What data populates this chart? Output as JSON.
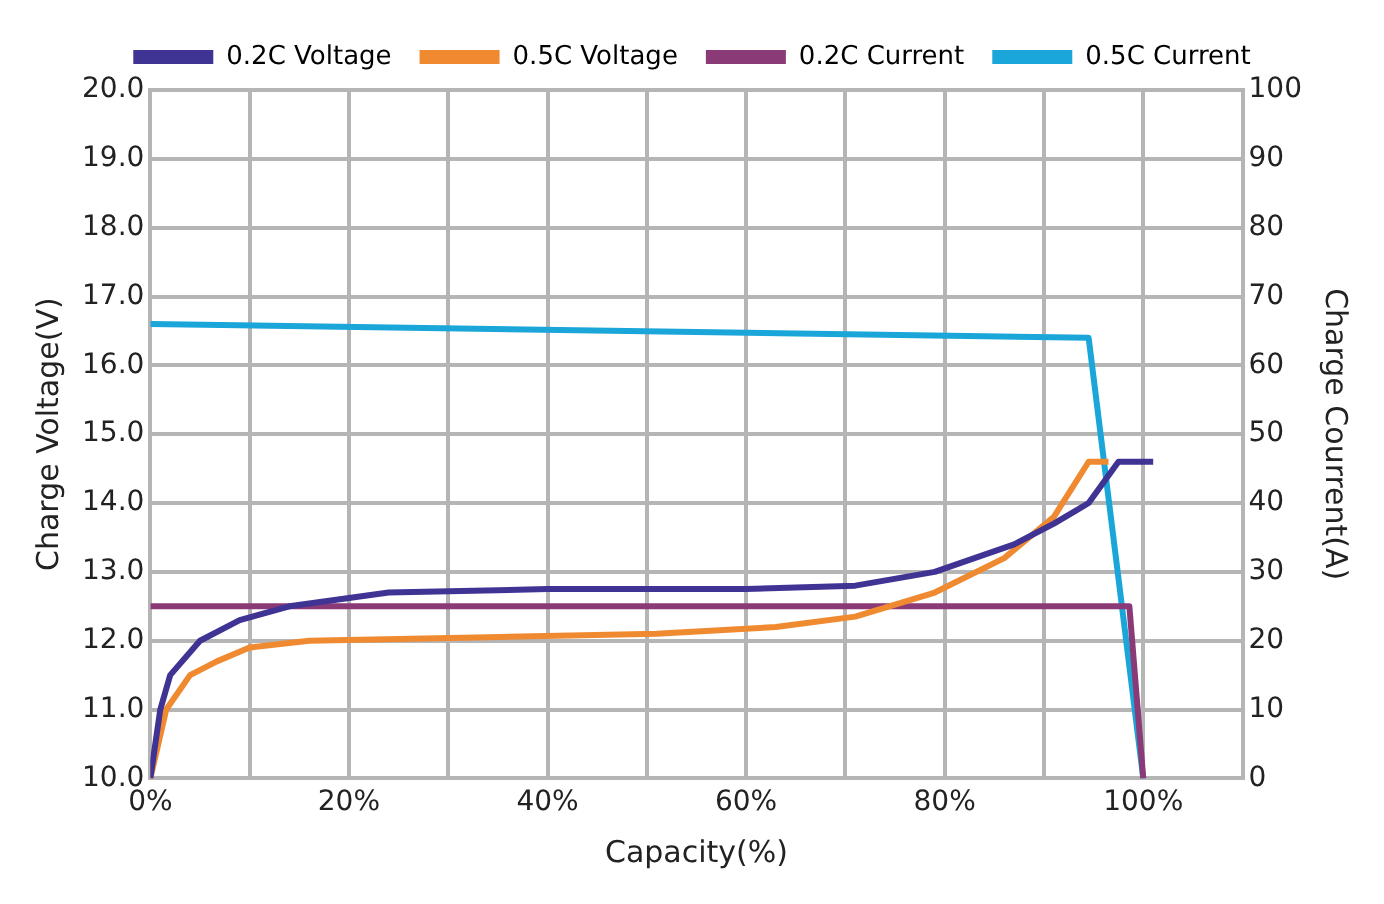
{
  "chart_data": {
    "type": "line",
    "xlabel": "Capacity(%)",
    "ylabel": "Charge Voltage(V)",
    "y2label": "Charge Courrent(A)",
    "xlim": [
      0,
      110
    ],
    "xticks": [
      {
        "value": 0,
        "label": "0%"
      },
      {
        "value": 10,
        "label": null
      },
      {
        "value": 20,
        "label": "20%"
      },
      {
        "value": 30,
        "label": null
      },
      {
        "value": 40,
        "label": "40%"
      },
      {
        "value": 50,
        "label": null
      },
      {
        "value": 60,
        "label": "60%"
      },
      {
        "value": 70,
        "label": null
      },
      {
        "value": 80,
        "label": "80%"
      },
      {
        "value": 90,
        "label": null
      },
      {
        "value": 100,
        "label": "100%"
      },
      {
        "value": 110,
        "label": null
      }
    ],
    "ylim": [
      10,
      20
    ],
    "yticks": [
      {
        "value": 10,
        "label": "10.0"
      },
      {
        "value": 11,
        "label": "11.0"
      },
      {
        "value": 12,
        "label": "12.0"
      },
      {
        "value": 13,
        "label": "13.0"
      },
      {
        "value": 14,
        "label": "14.0"
      },
      {
        "value": 15,
        "label": "15.0"
      },
      {
        "value": 16,
        "label": "16.0"
      },
      {
        "value": 17,
        "label": "17.0"
      },
      {
        "value": 18,
        "label": "18.0"
      },
      {
        "value": 19,
        "label": "19.0"
      },
      {
        "value": 20,
        "label": "20.0"
      }
    ],
    "y2lim": [
      0,
      100
    ],
    "y2ticks": [
      0,
      10,
      20,
      30,
      40,
      50,
      60,
      70,
      80,
      90,
      100
    ],
    "grid": true,
    "legend": "top",
    "marker": "none",
    "line_style": "solid",
    "series": [
      {
        "name": "0.2C Voltage",
        "color": "#3f3394",
        "x": [
          0,
          1,
          2,
          5,
          9,
          14,
          24,
          40,
          60,
          71,
          79,
          83,
          87,
          91,
          94.5,
          97.5,
          101
        ],
        "values": [
          10,
          11,
          11.5,
          12,
          12.3,
          12.5,
          12.7,
          12.75,
          12.75,
          12.8,
          13,
          13.2,
          13.4,
          13.7,
          14,
          14.6,
          14.6
        ]
      },
      {
        "name": "0.5C Voltage",
        "color": "#f08a30",
        "x": [
          0,
          1.6,
          4,
          6.7,
          10,
          16,
          34,
          51,
          63,
          71,
          79,
          86,
          91,
          94.5,
          96.5
        ],
        "values": [
          10,
          11,
          11.5,
          11.7,
          11.9,
          12,
          12.05,
          12.1,
          12.2,
          12.35,
          12.7,
          13.2,
          13.8,
          14.6,
          14.6
        ]
      },
      {
        "name": "0.2C Current",
        "color": "#8b3a78",
        "axis": "y2",
        "x": [
          0,
          98.6,
          100
        ],
        "values": [
          25,
          25,
          0
        ]
      },
      {
        "name": "0.5C Current",
        "color": "#1aa6d8",
        "axis": "y2",
        "x": [
          0,
          94.5,
          100
        ],
        "values": [
          66,
          64,
          0
        ]
      }
    ]
  }
}
